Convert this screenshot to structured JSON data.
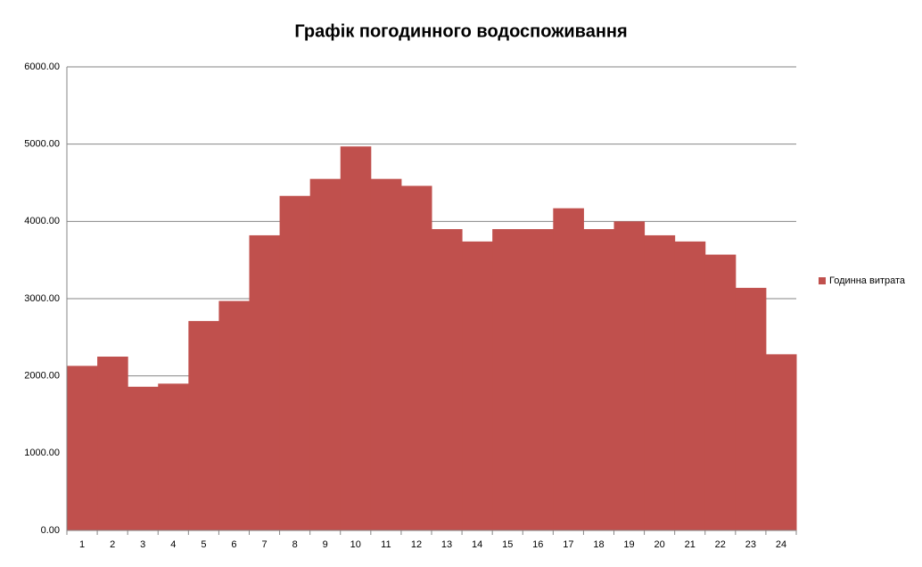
{
  "chart_data": {
    "type": "bar",
    "title": "Графік погодинного водоспоживання",
    "categories": [
      "1",
      "2",
      "3",
      "4",
      "5",
      "6",
      "7",
      "8",
      "9",
      "10",
      "11",
      "12",
      "13",
      "14",
      "15",
      "16",
      "17",
      "18",
      "19",
      "20",
      "21",
      "22",
      "23",
      "24"
    ],
    "series": [
      {
        "name": "Годинна витрата",
        "color": "#c0504d",
        "values": [
          2130,
          2250,
          1860,
          1900,
          2710,
          2970,
          3820,
          4330,
          4550,
          4970,
          4550,
          4460,
          3900,
          3740,
          3900,
          3900,
          4170,
          3900,
          4000,
          3820,
          3740,
          3570,
          3140,
          2280
        ]
      }
    ],
    "ylim": [
      0,
      6000
    ],
    "yticks": [
      {
        "value": 0,
        "label": "0.00"
      },
      {
        "value": 1000,
        "label": "1000.00"
      },
      {
        "value": 2000,
        "label": "2000.00"
      },
      {
        "value": 3000,
        "label": "3000.00"
      },
      {
        "value": 4000,
        "label": "4000.00"
      },
      {
        "value": 5000,
        "label": "5000.00"
      },
      {
        "value": 6000,
        "label": "6000.00"
      }
    ],
    "grid": true,
    "legend": "right"
  }
}
